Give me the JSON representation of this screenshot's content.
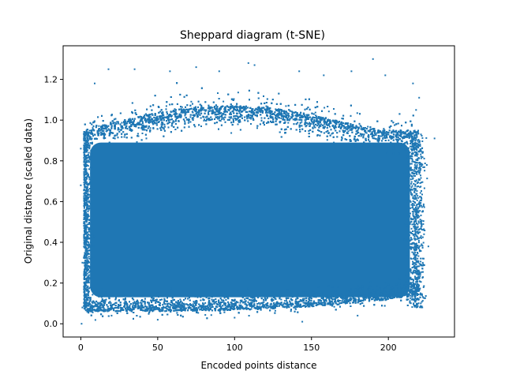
{
  "chart_data": {
    "type": "scatter",
    "title": "Sheppard diagram (t-SNE)",
    "xlabel": "Encoded points distance",
    "ylabel": "Original distance (scaled data)",
    "xlim": [
      -11.5,
      243
    ],
    "ylim": [
      -0.065,
      1.365
    ],
    "xticks": [
      0,
      50,
      100,
      150,
      200
    ],
    "yticks": [
      0.0,
      0.2,
      0.4,
      0.6,
      0.8,
      1.0,
      1.2
    ],
    "xtick_labels": [
      "0",
      "50",
      "100",
      "150",
      "200"
    ],
    "ytick_labels": [
      "0.0",
      "0.2",
      "0.4",
      "0.6",
      "0.8",
      "1.0",
      "1.2"
    ],
    "grid": false,
    "legend": "none",
    "marker_color": "#1f77b4",
    "density_core": {
      "x_range": [
        2,
        220
      ],
      "y_range": [
        0.08,
        0.93
      ]
    },
    "points": [
      {
        "x": 0.5,
        "y": 0.0
      },
      {
        "x": 0.0,
        "y": 0.86
      },
      {
        "x": 9,
        "y": 1.18
      },
      {
        "x": 18,
        "y": 1.25
      },
      {
        "x": 35,
        "y": 1.25
      },
      {
        "x": 58,
        "y": 1.24
      },
      {
        "x": 75,
        "y": 1.26
      },
      {
        "x": 90,
        "y": 1.24
      },
      {
        "x": 109,
        "y": 1.28
      },
      {
        "x": 113,
        "y": 1.27
      },
      {
        "x": 142,
        "y": 1.24
      },
      {
        "x": 158,
        "y": 1.22
      },
      {
        "x": 176,
        "y": 1.24
      },
      {
        "x": 190,
        "y": 1.3
      },
      {
        "x": 198,
        "y": 1.22
      },
      {
        "x": 216,
        "y": 1.18
      },
      {
        "x": 220,
        "y": 1.11
      },
      {
        "x": 218,
        "y": 1.05
      },
      {
        "x": 230,
        "y": 0.91
      },
      {
        "x": 225,
        "y": 0.78
      },
      {
        "x": 222,
        "y": 0.55
      },
      {
        "x": 226,
        "y": 0.38
      },
      {
        "x": 223,
        "y": 0.32
      },
      {
        "x": 215,
        "y": 0.18
      },
      {
        "x": 212,
        "y": 0.12
      },
      {
        "x": 180,
        "y": 0.04
      },
      {
        "x": 144,
        "y": 0.01
      },
      {
        "x": 100,
        "y": 0.03
      },
      {
        "x": 50,
        "y": 0.02
      },
      {
        "x": 20,
        "y": 0.04
      },
      {
        "x": 1,
        "y": 0.08
      },
      {
        "x": 0,
        "y": 0.68
      },
      {
        "x": 1,
        "y": 0.3
      }
    ]
  }
}
